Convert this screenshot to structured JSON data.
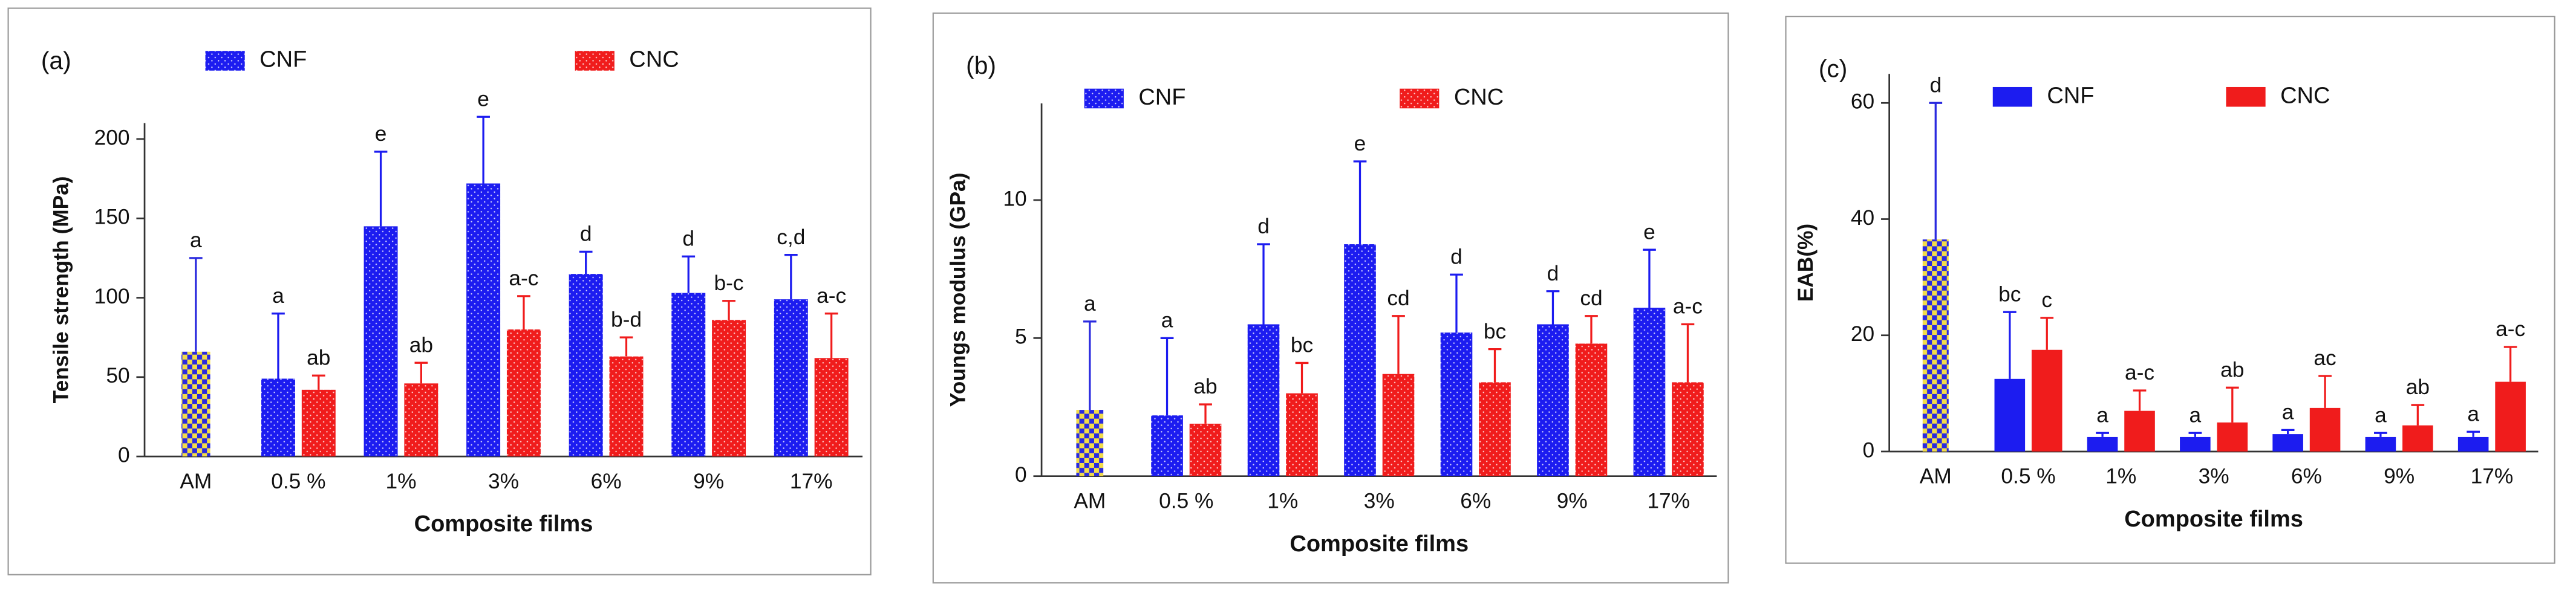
{
  "chart_data": [
    {
      "type": "bar",
      "panel": "(a)",
      "y_label": "Tensile strength (MPa)",
      "x_label": "Composite films",
      "categories": [
        "AM",
        "0.5 %",
        "1%",
        "3%",
        "6%",
        "9%",
        "17%"
      ],
      "ylim": [
        0,
        210
      ],
      "yticks": [
        0,
        50,
        100,
        150,
        200
      ],
      "bar_pattern": "dots",
      "am_bar": {
        "value": 66,
        "error": 59,
        "label": "a",
        "colors": [
          "#f2dc4a",
          "#2a2adf"
        ]
      },
      "series": [
        {
          "name": "CNF",
          "color": "#1c1cf0",
          "values": [
            null,
            49,
            145,
            172,
            115,
            103,
            99
          ],
          "errors": [
            null,
            41,
            47,
            42,
            14,
            23,
            28
          ],
          "labels": [
            null,
            "a",
            "e",
            "e",
            "d",
            "d",
            "c,d"
          ]
        },
        {
          "name": "CNC",
          "color": "#f01c1c",
          "values": [
            null,
            42,
            46,
            80,
            63,
            86,
            62
          ],
          "errors": [
            null,
            9,
            13,
            21,
            12,
            12,
            28
          ],
          "labels": [
            null,
            "ab",
            "ab",
            "a-c",
            "b-d",
            "b-c",
            "a-c"
          ]
        }
      ]
    },
    {
      "type": "bar",
      "panel": "(b)",
      "y_label": "Youngs modulus (GPa)",
      "x_label": "Composite films",
      "categories": [
        "AM",
        "0.5 %",
        "1%",
        "3%",
        "6%",
        "9%",
        "17%"
      ],
      "ylim": [
        0,
        13.5
      ],
      "yticks": [
        0,
        5,
        10
      ],
      "bar_pattern": "dots",
      "am_bar": {
        "value": 2.4,
        "error": 3.2,
        "label": "a",
        "colors": [
          "#f2dc4a",
          "#2a2adf"
        ]
      },
      "series": [
        {
          "name": "CNF",
          "color": "#1c1cf0",
          "values": [
            null,
            2.2,
            5.5,
            8.4,
            5.2,
            5.5,
            6.1
          ],
          "errors": [
            null,
            2.8,
            2.9,
            3.0,
            2.1,
            1.2,
            2.1
          ],
          "labels": [
            null,
            "a",
            "d",
            "e",
            "d",
            "d",
            "e"
          ]
        },
        {
          "name": "CNC",
          "color": "#f01c1c",
          "values": [
            null,
            1.9,
            3.0,
            3.7,
            3.4,
            4.8,
            3.4
          ],
          "errors": [
            null,
            0.7,
            1.1,
            2.1,
            1.2,
            1.0,
            2.1
          ],
          "labels": [
            null,
            "ab",
            "bc",
            "cd",
            "bc",
            "cd",
            "a-c"
          ]
        }
      ]
    },
    {
      "type": "bar",
      "panel": "(c)",
      "y_label": "EAB(%)",
      "x_label": "Composite films",
      "categories": [
        "AM",
        "0.5 %",
        "1%",
        "3%",
        "6%",
        "9%",
        "17%"
      ],
      "ylim": [
        0,
        65
      ],
      "yticks": [
        0,
        20,
        40,
        60
      ],
      "bar_pattern": "solid",
      "am_bar": {
        "value": 36.5,
        "error": 23.5,
        "label": "d",
        "colors": [
          "#f2dc4a",
          "#2a2adf"
        ]
      },
      "series": [
        {
          "name": "CNF",
          "color": "#1c1cf0",
          "values": [
            null,
            12.5,
            2.5,
            2.5,
            3,
            2.5,
            2.5
          ],
          "errors": [
            null,
            11.5,
            0.7,
            0.7,
            0.7,
            0.7,
            0.9
          ],
          "labels": [
            null,
            "bc",
            "a",
            "a",
            "a",
            "a",
            "a"
          ]
        },
        {
          "name": "CNC",
          "color": "#f01c1c",
          "values": [
            null,
            17.5,
            7,
            5,
            7.5,
            4.5,
            12
          ],
          "errors": [
            null,
            5.5,
            3.5,
            6,
            5.5,
            3.5,
            6
          ],
          "labels": [
            null,
            "c",
            "a-c",
            "ab",
            "ac",
            "ab",
            "a-c"
          ]
        }
      ]
    }
  ]
}
